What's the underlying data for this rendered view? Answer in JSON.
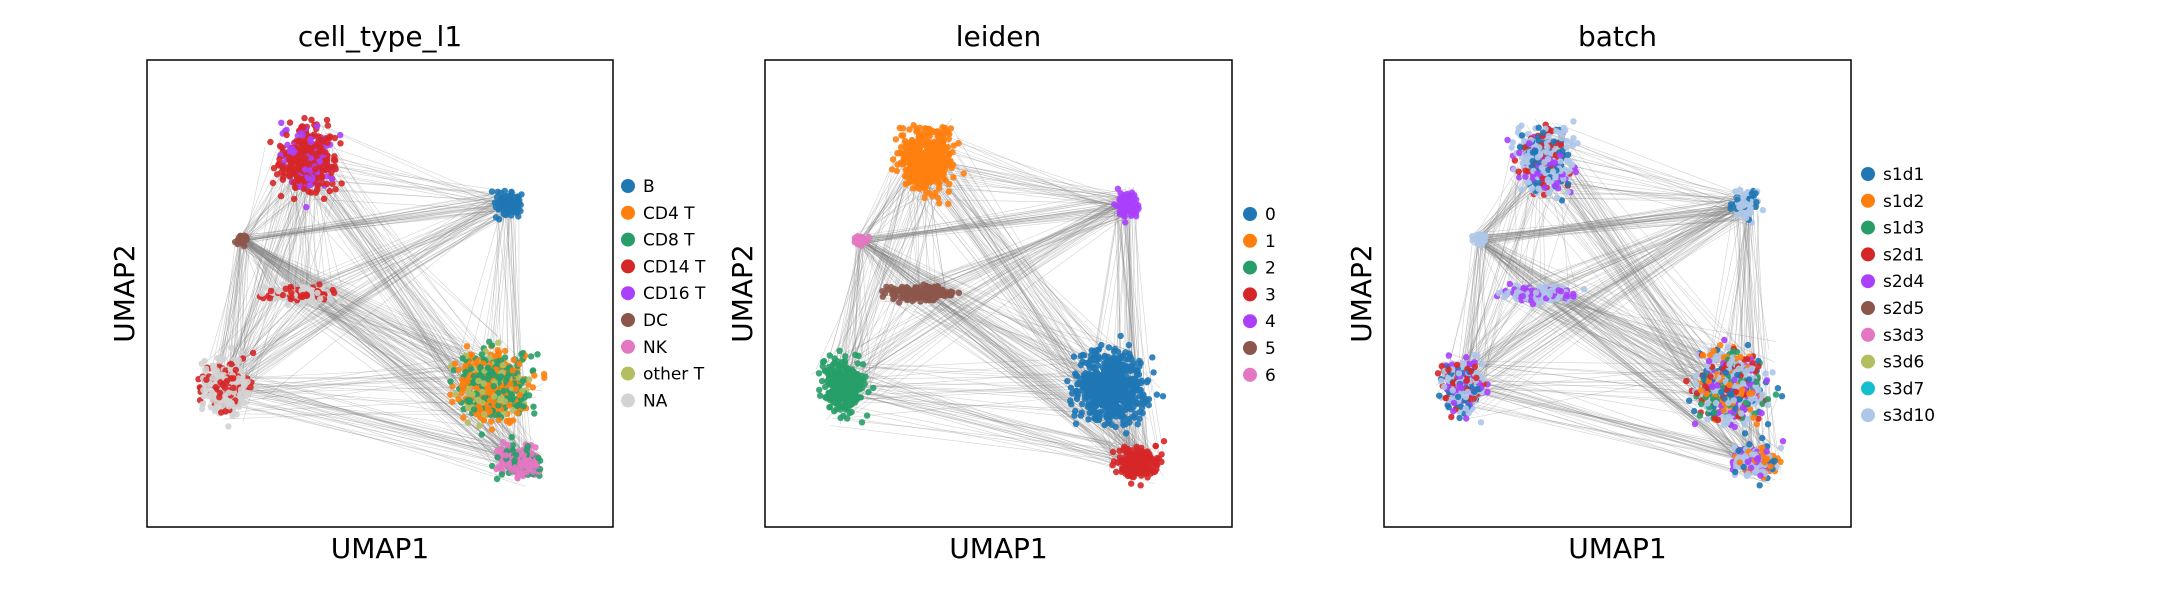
{
  "chart_data": [
    {
      "type": "scatter",
      "title": "cell_type_l1",
      "xlabel": "UMAP1",
      "ylabel": "UMAP2",
      "xticks": [],
      "yticks": [],
      "grid": false,
      "edges_color": "#808080",
      "legend_placement": "right",
      "legend": [
        {
          "label": "B",
          "color": "#1f77b4"
        },
        {
          "label": "CD4 T",
          "color": "#ff7f0e"
        },
        {
          "label": "CD8 T",
          "color": "#279e68"
        },
        {
          "label": "CD14 T",
          "color": "#d62728"
        },
        {
          "label": "CD16 T",
          "color": "#aa40fc"
        },
        {
          "label": "DC",
          "color": "#8c564b"
        },
        {
          "label": "NK",
          "color": "#e377c2"
        },
        {
          "label": "other T",
          "color": "#b5bd61"
        },
        {
          "label": "NA",
          "color": "#d3d3d3"
        }
      ]
    },
    {
      "type": "scatter",
      "title": "leiden",
      "xlabel": "UMAP1",
      "ylabel": "UMAP2",
      "xticks": [],
      "yticks": [],
      "grid": false,
      "edges_color": "#808080",
      "legend_placement": "right",
      "legend": [
        {
          "label": "0",
          "color": "#1f77b4"
        },
        {
          "label": "1",
          "color": "#ff7f0e"
        },
        {
          "label": "2",
          "color": "#279e68"
        },
        {
          "label": "3",
          "color": "#d62728"
        },
        {
          "label": "4",
          "color": "#aa40fc"
        },
        {
          "label": "5",
          "color": "#8c564b"
        },
        {
          "label": "6",
          "color": "#e377c2"
        }
      ]
    },
    {
      "type": "scatter",
      "title": "batch",
      "xlabel": "UMAP1",
      "ylabel": "UMAP2",
      "xticks": [],
      "yticks": [],
      "grid": false,
      "edges_color": "#808080",
      "legend_placement": "right",
      "legend": [
        {
          "label": "s1d1",
          "color": "#1f77b4"
        },
        {
          "label": "s1d2",
          "color": "#ff7f0e"
        },
        {
          "label": "s1d3",
          "color": "#279e68"
        },
        {
          "label": "s2d1",
          "color": "#d62728"
        },
        {
          "label": "s2d4",
          "color": "#aa40fc"
        },
        {
          "label": "s2d5",
          "color": "#8c564b"
        },
        {
          "label": "s3d3",
          "color": "#e377c2"
        },
        {
          "label": "s3d6",
          "color": "#b5bd61"
        },
        {
          "label": "s3d7",
          "color": "#17becf"
        },
        {
          "label": "s3d10",
          "color": "#aec7e8"
        }
      ]
    }
  ]
}
